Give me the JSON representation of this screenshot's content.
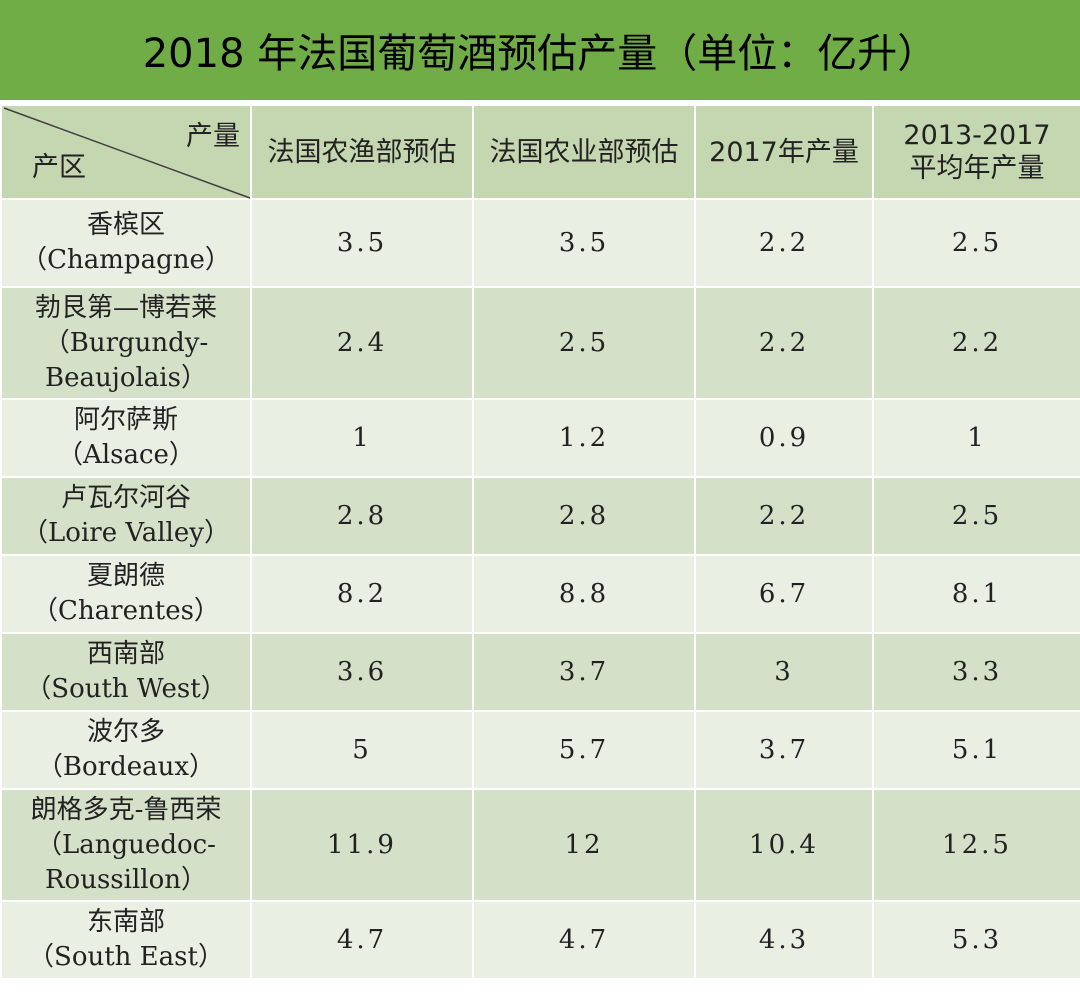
{
  "title": "2018 年法国葡萄酒预估产量（单位：亿升）",
  "header": {
    "corner_top": "产量",
    "corner_bottom": "产区",
    "columns": [
      "法国农渔部预估",
      "法国农业部预估",
      "2017年产量",
      "2013-2017平均年产量"
    ]
  },
  "colors": {
    "title_bg": "#70ad47",
    "header_bg": "#c5d7b0",
    "row_light": "#e9efe3",
    "row_dark": "#d4e1c8"
  },
  "chart_data": {
    "type": "table",
    "title": "2018 年法国葡萄酒预估产量（单位：亿升）",
    "columns": [
      "产区",
      "法国农渔部预估",
      "法国农业部预估",
      "2017年产量",
      "2013-2017平均年产量"
    ],
    "rows": [
      {
        "region_zh": "香槟区",
        "region_en": "（Champagne）",
        "values": [
          "3.5",
          "3.5",
          "2.2",
          "2.5"
        ]
      },
      {
        "region_zh": "勃艮第—博若莱",
        "region_en": "（Burgundy-Beaujolais）",
        "values": [
          "2.4",
          "2.5",
          "2.2",
          "2.2"
        ]
      },
      {
        "region_zh": "阿尔萨斯",
        "region_en": "（Alsace）",
        "values": [
          "1",
          "1.2",
          "0.9",
          "1"
        ]
      },
      {
        "region_zh": "卢瓦尔河谷",
        "region_en": "（Loire Valley）",
        "values": [
          "2.8",
          "2.8",
          "2.2",
          "2.5"
        ]
      },
      {
        "region_zh": "夏朗德",
        "region_en": "（Charentes）",
        "values": [
          "8.2",
          "8.8",
          "6.7",
          "8.1"
        ]
      },
      {
        "region_zh": "西南部",
        "region_en": "（South West）",
        "values": [
          "3.6",
          "3.7",
          "3",
          "3.3"
        ]
      },
      {
        "region_zh": "波尔多",
        "region_en": "（Bordeaux）",
        "values": [
          "5",
          "5.7",
          "3.7",
          "5.1"
        ]
      },
      {
        "region_zh": "朗格多克-鲁西荣",
        "region_en": "（Languedoc-Roussillon）",
        "values": [
          "11.9",
          "12",
          "10.4",
          "12.5"
        ]
      },
      {
        "region_zh": "东南部",
        "region_en": "（South East）",
        "values": [
          "4.7",
          "4.7",
          "4.3",
          "5.3"
        ]
      }
    ]
  }
}
